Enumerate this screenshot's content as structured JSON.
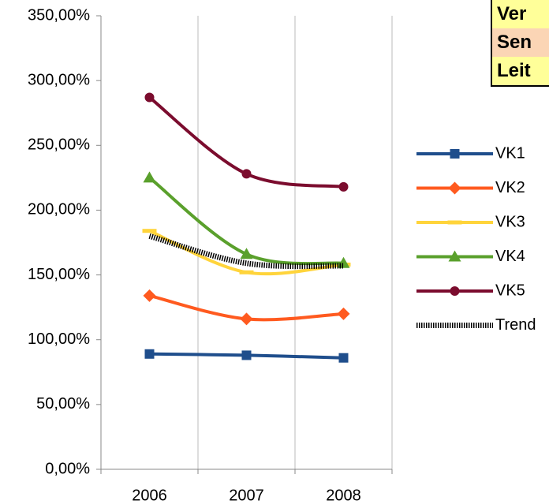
{
  "chart_data": {
    "type": "line",
    "categories": [
      "2006",
      "2007",
      "2008"
    ],
    "series": [
      {
        "name": "VK1",
        "color": "#1f4e8c",
        "marker": "square",
        "values": [
          89,
          88,
          86
        ]
      },
      {
        "name": "VK2",
        "color": "#ff5a1f",
        "marker": "diamond",
        "values": [
          134,
          116,
          120
        ]
      },
      {
        "name": "VK3",
        "color": "#ffd43b",
        "marker": "dash",
        "values": [
          184,
          152,
          158
        ]
      },
      {
        "name": "VK4",
        "color": "#5aa02c",
        "marker": "triangle",
        "values": [
          225,
          166,
          159
        ]
      },
      {
        "name": "VK5",
        "color": "#7b0c2e",
        "marker": "circle",
        "values": [
          287,
          228,
          218
        ]
      },
      {
        "name": "Trend",
        "color": "#000000",
        "marker": "none",
        "values": [
          180,
          159,
          157
        ]
      }
    ],
    "ylim": [
      0,
      350
    ],
    "yticks": [
      {
        "value": 0,
        "label": "0,00%"
      },
      {
        "value": 50,
        "label": "50,00%"
      },
      {
        "value": 100,
        "label": "100,00%"
      },
      {
        "value": 150,
        "label": "150,00%"
      },
      {
        "value": 200,
        "label": "200,00%"
      },
      {
        "value": 250,
        "label": "250,00%"
      },
      {
        "value": 300,
        "label": "300,00%"
      },
      {
        "value": 350,
        "label": "350,00%"
      }
    ],
    "grid": true,
    "legend": "right"
  },
  "note_box": {
    "lines": [
      "Ver",
      "Sen",
      "Leit"
    ],
    "colors": [
      "#ffff99",
      "#fbd5b5",
      "#ffff99"
    ]
  }
}
